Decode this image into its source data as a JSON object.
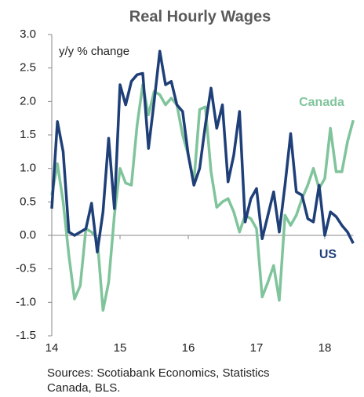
{
  "chart_data": {
    "type": "line",
    "title": "Real Hourly Wages",
    "annotations": [
      "y/y % change"
    ],
    "source": [
      "Sources: Scotiabank Economics, Statistics",
      "Canada, BLS."
    ],
    "x": [
      14,
      14.083,
      14.167,
      14.25,
      14.333,
      14.417,
      14.5,
      14.583,
      14.667,
      14.75,
      14.833,
      14.917,
      15,
      15.083,
      15.167,
      15.25,
      15.333,
      15.417,
      15.5,
      15.583,
      15.667,
      15.75,
      15.833,
      15.917,
      16,
      16.083,
      16.167,
      16.25,
      16.333,
      16.417,
      16.5,
      16.583,
      16.667,
      16.75,
      16.833,
      16.917,
      17,
      17.083,
      17.167,
      17.25,
      17.333,
      17.417,
      17.5,
      17.583,
      17.667,
      17.75,
      17.833,
      17.917,
      18,
      18.083,
      18.167,
      18.25,
      18.333,
      18.417
    ],
    "series": [
      {
        "name": "US",
        "color": "#1f3f78",
        "values": [
          0.4,
          1.7,
          1.25,
          0.05,
          0.0,
          0.05,
          0.1,
          0.48,
          -0.25,
          0.35,
          1.45,
          0.4,
          2.25,
          1.95,
          2.3,
          2.4,
          2.42,
          1.3,
          2.0,
          2.75,
          2.25,
          2.3,
          1.95,
          1.85,
          1.2,
          0.75,
          1.0,
          1.65,
          2.2,
          1.6,
          1.95,
          0.8,
          1.2,
          1.85,
          0.2,
          0.55,
          0.7,
          -0.05,
          0.3,
          0.65,
          0.05,
          0.75,
          1.52,
          0.65,
          0.6,
          0.25,
          0.2,
          0.75,
          0.0,
          0.35,
          0.28,
          0.15,
          0.05,
          -0.12
        ]
      },
      {
        "name": "Canada",
        "color": "#80c49c",
        "values": [
          0.6,
          1.07,
          0.5,
          -0.3,
          -0.95,
          -0.75,
          0.1,
          0.05,
          -0.05,
          -1.12,
          -0.7,
          0.3,
          1.0,
          0.78,
          0.75,
          1.65,
          2.25,
          1.8,
          2.15,
          2.1,
          1.95,
          2.05,
          1.95,
          1.5,
          1.2,
          0.8,
          1.88,
          1.92,
          0.95,
          0.42,
          0.5,
          0.55,
          0.35,
          0.05,
          0.3,
          0.25,
          0.1,
          -0.92,
          -0.7,
          -0.45,
          -0.97,
          0.3,
          0.15,
          0.3,
          0.55,
          0.75,
          1.0,
          0.7,
          0.85,
          1.6,
          0.95,
          0.95,
          1.4,
          1.72
        ]
      }
    ],
    "xlim": [
      14,
      18.5
    ],
    "xticks": [
      14,
      15,
      16,
      17,
      18
    ],
    "ylim": [
      -1.5,
      3
    ],
    "yticks": [
      {
        "value": 3,
        "label": "3.0"
      },
      2.5,
      {
        "value": 2,
        "label": "2.0"
      },
      1.5,
      {
        "value": 1,
        "label": "1.0"
      },
      0.5,
      {
        "value": 0,
        "label": "0.0"
      },
      -0.5,
      {
        "value": -1,
        "label": "-1.0"
      },
      -1.5
    ],
    "grid": false
  }
}
